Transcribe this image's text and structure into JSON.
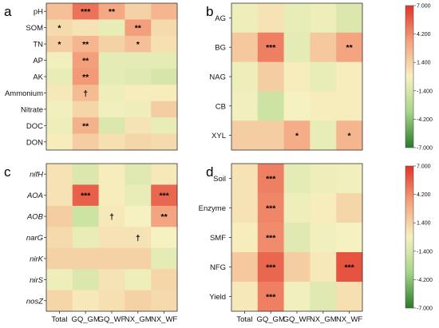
{
  "chart_data": {
    "type": "heatmap",
    "colorbar": {
      "ticks": [
        "7.000",
        "4.200",
        "1.400",
        "-1.400",
        "-4.200",
        "-7.000"
      ],
      "tick_values": [
        7,
        4.2,
        1.4,
        -1.4,
        -4.2,
        -7
      ],
      "range": [
        -7,
        7
      ],
      "colors": [
        "#2b7a2b",
        "#a6d58a",
        "#f6f1c0",
        "#f4a27e",
        "#e03428"
      ]
    },
    "x_categories": [
      "Total",
      "GQ_GM",
      "GQ_WF",
      "NX_GM",
      "NX_WF"
    ],
    "panels": [
      {
        "letter": "a",
        "rows": [
          "pH",
          "SOM",
          "TN",
          "AP",
          "AK",
          "Ammonium",
          "Nitrate",
          "DOC",
          "DON"
        ],
        "italic_rows": false,
        "values": [
          [
            2.2,
            5.0,
            3.2,
            1.4,
            2.6
          ],
          [
            1.0,
            0.6,
            -0.6,
            3.6,
            1.0
          ],
          [
            1.6,
            2.6,
            1.4,
            2.2,
            0.8
          ],
          [
            -0.2,
            3.6,
            -0.8,
            -0.8,
            -0.8
          ],
          [
            -0.6,
            3.8,
            -0.8,
            -1.0,
            -1.4
          ],
          [
            0.4,
            2.4,
            -0.4,
            0.2,
            0.2
          ],
          [
            -0.2,
            1.2,
            -0.2,
            -0.4,
            1.6
          ],
          [
            -0.4,
            2.8,
            -1.2,
            0.6,
            -0.6
          ],
          [
            0.2,
            1.6,
            0.8,
            1.2,
            1.0
          ]
        ],
        "marks": [
          [
            "",
            "***",
            "**",
            "",
            ""
          ],
          [
            "*",
            "",
            "",
            "**",
            ""
          ],
          [
            "*",
            "**",
            "",
            "*",
            ""
          ],
          [
            "",
            "**",
            "",
            "",
            ""
          ],
          [
            "",
            "**",
            "",
            "",
            ""
          ],
          [
            "",
            "†",
            "",
            "",
            ""
          ],
          [
            "",
            "",
            "",
            "",
            ""
          ],
          [
            "",
            "**",
            "",
            "",
            ""
          ],
          [
            "",
            "",
            "",
            "",
            ""
          ]
        ]
      },
      {
        "letter": "b",
        "rows": [
          "AG",
          "BG",
          "NAG",
          "CB",
          "XYL"
        ],
        "italic_rows": false,
        "values": [
          [
            -0.4,
            0.6,
            -0.6,
            -0.4,
            -1.2
          ],
          [
            1.8,
            4.6,
            -0.8,
            1.8,
            3.4
          ],
          [
            -0.4,
            1.6,
            0.2,
            -0.6,
            0.2
          ],
          [
            -0.2,
            -1.8,
            0.0,
            0.2,
            0.2
          ],
          [
            1.6,
            1.6,
            3.0,
            -0.6,
            2.6
          ]
        ],
        "marks": [
          [
            "",
            "",
            "",
            "",
            ""
          ],
          [
            "",
            "***",
            "",
            "",
            "**"
          ],
          [
            "",
            "",
            "",
            "",
            ""
          ],
          [
            "",
            "",
            "",
            "",
            ""
          ],
          [
            "",
            "",
            "*",
            "",
            "*"
          ]
        ]
      },
      {
        "letter": "c",
        "rows": [
          "nifH",
          "AOA",
          "AOB",
          "narG",
          "nirK",
          "nirS",
          "nosZ"
        ],
        "italic_rows": true,
        "values": [
          [
            0.6,
            -1.2,
            0.2,
            -1.0,
            0.4
          ],
          [
            0.6,
            5.6,
            0.2,
            -0.6,
            5.4
          ],
          [
            1.6,
            -1.8,
            0.4,
            0.0,
            3.4
          ],
          [
            1.0,
            -0.6,
            0.6,
            0.6,
            0.0
          ],
          [
            1.4,
            1.4,
            1.4,
            1.4,
            -0.8
          ],
          [
            -0.4,
            -1.2,
            0.6,
            -0.4,
            1.2
          ],
          [
            1.2,
            0.4,
            0.8,
            1.4,
            1.0
          ]
        ],
        "marks": [
          [
            "",
            "",
            "",
            "",
            ""
          ],
          [
            "",
            "***",
            "",
            "",
            "***"
          ],
          [
            "",
            "",
            "†",
            "",
            "**"
          ],
          [
            "",
            "",
            "",
            "†",
            ""
          ],
          [
            "",
            "",
            "",
            "",
            ""
          ],
          [
            "",
            "",
            "",
            "",
            ""
          ],
          [
            "",
            "",
            "",
            "",
            ""
          ]
        ]
      },
      {
        "letter": "d",
        "rows": [
          "Soil",
          "Enzyme",
          "SMF",
          "NFG",
          "Yield"
        ],
        "italic_rows": false,
        "values": [
          [
            0.6,
            4.6,
            -0.8,
            -0.4,
            -0.2
          ],
          [
            0.6,
            4.4,
            -0.4,
            0.2,
            1.2
          ],
          [
            0.2,
            4.2,
            -1.0,
            -0.2,
            0.0
          ],
          [
            1.8,
            5.4,
            1.6,
            0.4,
            6.0
          ],
          [
            0.4,
            4.6,
            -0.2,
            -1.0,
            0.8
          ]
        ],
        "marks": [
          [
            "",
            "***",
            "",
            "",
            ""
          ],
          [
            "",
            "***",
            "",
            "",
            ""
          ],
          [
            "",
            "***",
            "",
            "",
            ""
          ],
          [
            "",
            "***",
            "",
            "",
            "***"
          ],
          [
            "",
            "***",
            "",
            "",
            ""
          ]
        ]
      }
    ]
  }
}
